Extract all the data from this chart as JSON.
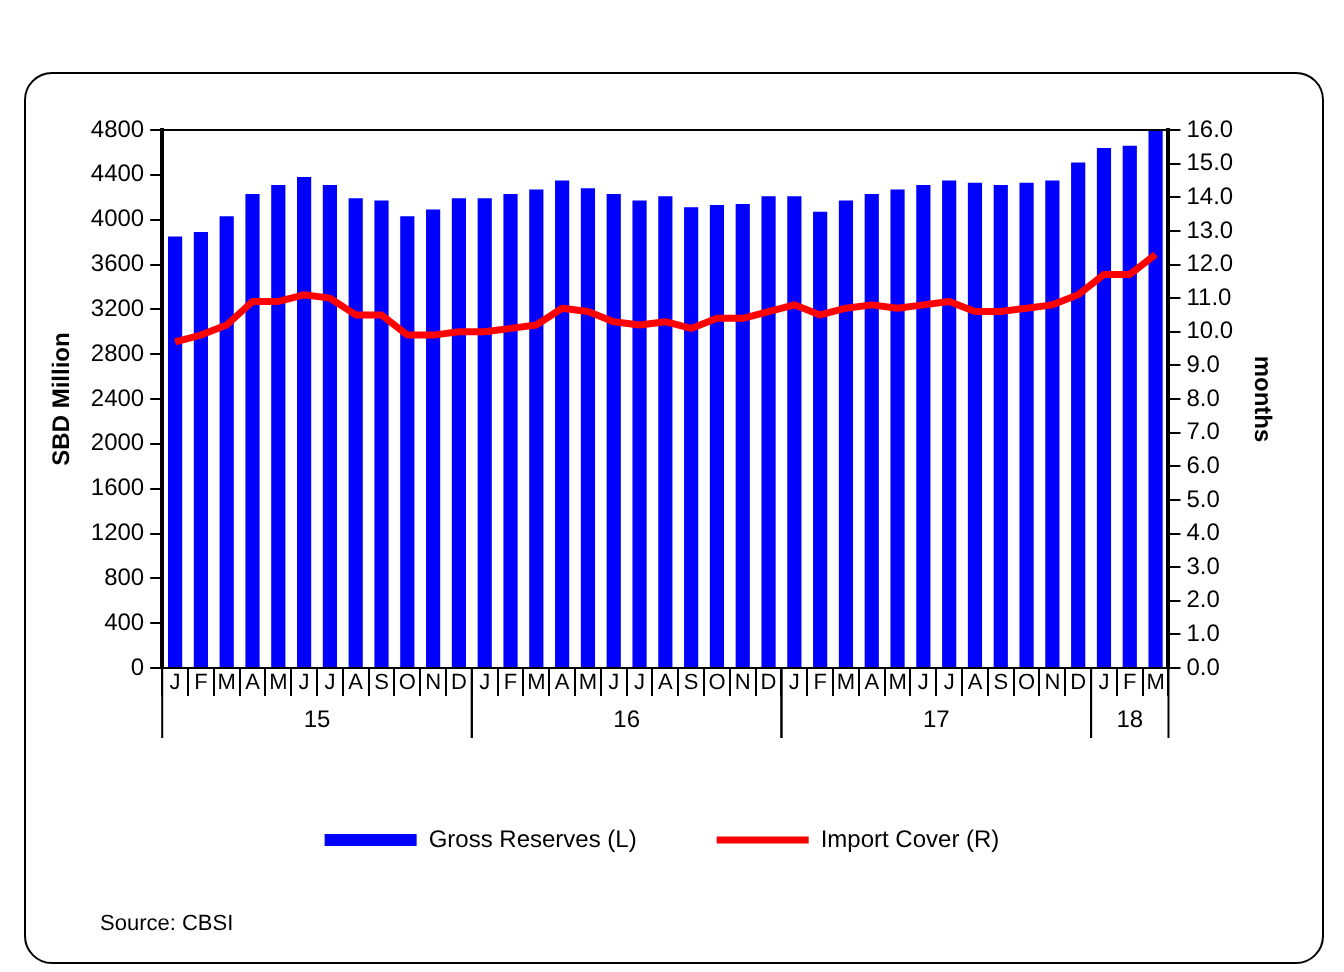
{
  "chart_data": {
    "type": "bar",
    "categories": [
      "J",
      "F",
      "M",
      "A",
      "M",
      "J",
      "J",
      "A",
      "S",
      "O",
      "N",
      "D",
      "J",
      "F",
      "M",
      "A",
      "M",
      "J",
      "J",
      "A",
      "S",
      "O",
      "N",
      "D",
      "J",
      "F",
      "M",
      "A",
      "M",
      "J",
      "J",
      "A",
      "S",
      "O",
      "N",
      "D",
      "J",
      "F",
      "M"
    ],
    "series": [
      {
        "name": "Gross Reserves (L)",
        "color": "#0000ff",
        "values": [
          3850,
          3890,
          4030,
          4230,
          4310,
          4380,
          4310,
          4190,
          4170,
          4030,
          4090,
          4190,
          4190,
          4230,
          4270,
          4350,
          4280,
          4230,
          4170,
          4210,
          4110,
          4130,
          4140,
          4210,
          4210,
          4070,
          4170,
          4230,
          4270,
          4310,
          4350,
          4330,
          4310,
          4330,
          4350,
          4510,
          4640,
          4660,
          4800
        ]
      },
      {
        "name": "Import Cover (R)",
        "type": "line",
        "axis": "y2",
        "color": "#ff0000",
        "values": [
          9.7,
          9.9,
          10.2,
          10.9,
          10.9,
          11.1,
          11.0,
          10.5,
          10.5,
          9.9,
          9.9,
          10.0,
          10.0,
          10.1,
          10.2,
          10.7,
          10.6,
          10.3,
          10.2,
          10.3,
          10.1,
          10.4,
          10.4,
          10.6,
          10.8,
          10.5,
          10.7,
          10.8,
          10.7,
          10.8,
          10.9,
          10.6,
          10.6,
          10.7,
          10.8,
          11.1,
          11.7,
          11.7,
          12.3
        ]
      }
    ],
    "ylabel": "SBD Million",
    "y2label": "months",
    "ylim": [
      0,
      4800
    ],
    "yticks": [
      0,
      400,
      800,
      1200,
      1600,
      2000,
      2400,
      2800,
      3200,
      3600,
      4000,
      4400,
      4800
    ],
    "y2lim": [
      0,
      16
    ],
    "y2ticks": [
      {
        "value": 0,
        "label": "0.0"
      },
      {
        "value": 1,
        "label": "1.0"
      },
      {
        "value": 2,
        "label": "2.0"
      },
      {
        "value": 3,
        "label": "3.0"
      },
      {
        "value": 4,
        "label": "4.0"
      },
      {
        "value": 5,
        "label": "5.0"
      },
      {
        "value": 6,
        "label": "6.0"
      },
      {
        "value": 7,
        "label": "7.0"
      },
      {
        "value": 8,
        "label": "8.0"
      },
      {
        "value": 9,
        "label": "9.0"
      },
      {
        "value": 10,
        "label": "10.0"
      },
      {
        "value": 11,
        "label": "11.0"
      },
      {
        "value": 12,
        "label": "12.0"
      },
      {
        "value": 13,
        "label": "13.0"
      },
      {
        "value": 14,
        "label": "14.0"
      },
      {
        "value": 15,
        "label": "15.0"
      },
      {
        "value": 16,
        "label": "16.0"
      }
    ],
    "legend": "bottom",
    "annotations": [
      "15",
      "16",
      "17",
      "18",
      "Source: CBSI"
    ]
  }
}
